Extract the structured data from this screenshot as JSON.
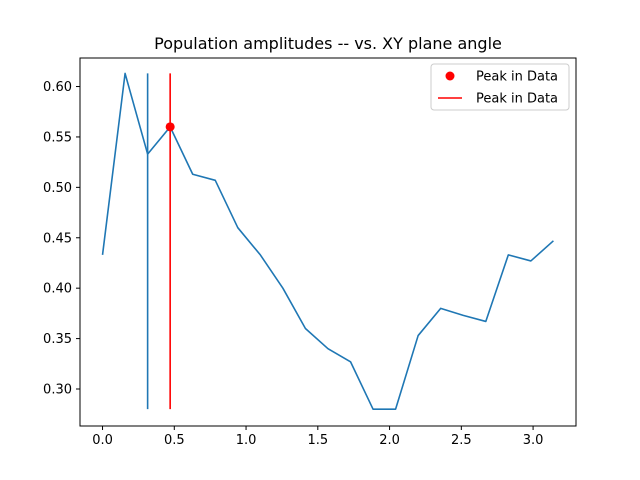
{
  "chart_data": {
    "type": "line",
    "title": "Population amplitudes -- vs. XY plane angle",
    "xlabel": "",
    "ylabel": "",
    "xlim": [
      -0.157,
      3.299
    ],
    "ylim": [
      0.2633,
      0.6283
    ],
    "x_ticks": [
      0.0,
      0.5,
      1.0,
      1.5,
      2.0,
      2.5,
      3.0
    ],
    "x_tick_labels": [
      "0.0",
      "0.5",
      "1.0",
      "1.5",
      "2.0",
      "2.5",
      "3.0"
    ],
    "y_ticks": [
      0.3,
      0.35,
      0.4,
      0.45,
      0.5,
      0.55,
      0.6
    ],
    "y_tick_labels": [
      "0.30",
      "0.35",
      "0.40",
      "0.45",
      "0.50",
      "0.55",
      "0.60"
    ],
    "grid": false,
    "legend_position": "top-right",
    "series": [
      {
        "kind": "line",
        "color": "#1f77b4",
        "x": [
          0.0,
          0.1571,
          0.3142,
          0.4712,
          0.6283,
          0.7854,
          0.9425,
          1.0996,
          1.2566,
          1.4137,
          1.5708,
          1.7279,
          1.885,
          2.042,
          2.1991,
          2.3562,
          2.5133,
          2.6704,
          2.8274,
          2.9845,
          3.1416
        ],
        "values": [
          0.433,
          0.613,
          0.533,
          0.56,
          0.513,
          0.507,
          0.46,
          0.433,
          0.4,
          0.36,
          0.34,
          0.327,
          0.28,
          0.28,
          0.353,
          0.38,
          0.373,
          0.367,
          0.433,
          0.427,
          0.447
        ]
      },
      {
        "kind": "vline",
        "color": "#1f77b4",
        "x": 0.3142,
        "ymin": 0.28,
        "ymax": 0.613
      },
      {
        "kind": "vline",
        "name": "Peak in Data",
        "color": "#ff0000",
        "x": 0.4712,
        "ymin": 0.28,
        "ymax": 0.613
      },
      {
        "kind": "point",
        "name": "Peak in Data",
        "color": "#ff0000",
        "x": 0.4712,
        "y": 0.56
      }
    ],
    "legend": [
      {
        "label": "Peak in Data",
        "marker": "dot",
        "color": "#ff0000"
      },
      {
        "label": "Peak in Data",
        "marker": "line",
        "color": "#ff0000"
      }
    ]
  }
}
